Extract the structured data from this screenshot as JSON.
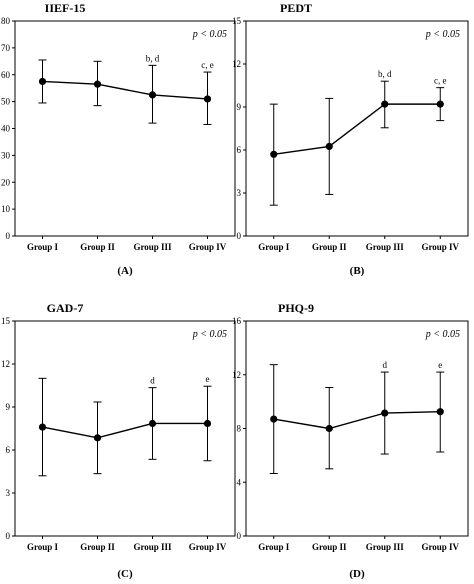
{
  "chart_data": [
    {
      "panel": "(A)",
      "type": "line",
      "title": "IIEF-15",
      "annotation": "p < 0.05",
      "categories": [
        "Group I",
        "Group II",
        "Group III",
        "Group IV"
      ],
      "values": [
        57.5,
        56.5,
        52.5,
        51.0
      ],
      "error_upper": [
        65.5,
        65.0,
        63.5,
        61.0
      ],
      "error_lower": [
        49.5,
        48.5,
        42.0,
        41.5
      ],
      "point_labels": [
        "",
        "",
        "b, d",
        "c, e"
      ],
      "ylim": [
        0,
        80
      ],
      "yticks": [
        0,
        10,
        20,
        30,
        40,
        50,
        60,
        70,
        80
      ]
    },
    {
      "panel": "(B)",
      "type": "line",
      "title": "PEDT",
      "annotation": "p < 0.05",
      "categories": [
        "Group I",
        "Group II",
        "Group III",
        "Group IV"
      ],
      "values": [
        5.7,
        6.25,
        9.2,
        9.2
      ],
      "error_upper": [
        9.2,
        9.6,
        10.8,
        10.35
      ],
      "error_lower": [
        2.15,
        2.9,
        7.55,
        8.05
      ],
      "point_labels": [
        "",
        "",
        "b, d",
        "c, e"
      ],
      "ylim": [
        0,
        15
      ],
      "yticks": [
        0,
        3,
        6,
        9,
        12,
        15
      ]
    },
    {
      "panel": "(C)",
      "type": "line",
      "title": "GAD-7",
      "annotation": "p < 0.05",
      "categories": [
        "Group I",
        "Group II",
        "Group III",
        "Group IV"
      ],
      "values": [
        7.6,
        6.85,
        7.85,
        7.85
      ],
      "error_upper": [
        11.0,
        9.35,
        10.35,
        10.45
      ],
      "error_lower": [
        4.2,
        4.35,
        5.35,
        5.25
      ],
      "point_labels": [
        "",
        "",
        "d",
        "e"
      ],
      "ylim": [
        0,
        15
      ],
      "yticks": [
        0,
        3,
        6,
        9,
        12,
        15
      ]
    },
    {
      "panel": "(D)",
      "type": "line",
      "title": "PHQ-9",
      "annotation": "p < 0.05",
      "categories": [
        "Group I",
        "Group II",
        "Group III",
        "Group IV"
      ],
      "values": [
        8.7,
        8.0,
        9.15,
        9.25
      ],
      "error_upper": [
        12.75,
        11.05,
        12.2,
        12.2
      ],
      "error_lower": [
        4.65,
        5.0,
        6.1,
        6.25
      ],
      "point_labels": [
        "",
        "",
        "d",
        "e"
      ],
      "ylim": [
        0,
        16
      ],
      "yticks": [
        0,
        4,
        8,
        12,
        16
      ]
    }
  ]
}
